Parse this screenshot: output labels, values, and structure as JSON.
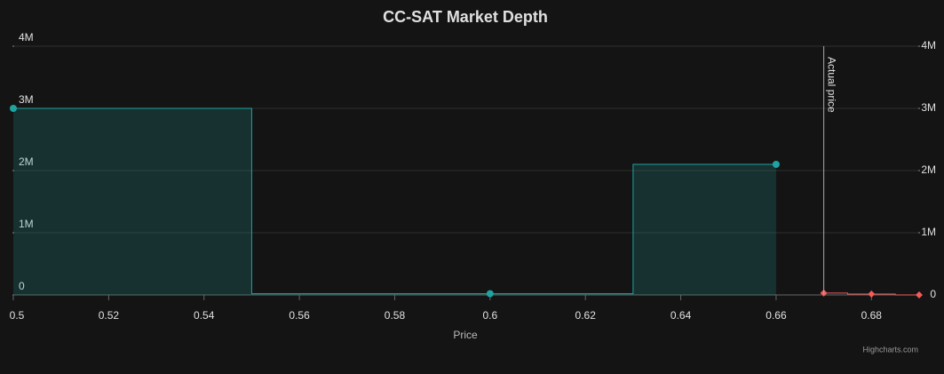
{
  "chart_data": {
    "type": "depth",
    "title": "CC-SAT Market Depth",
    "x_label": "Price",
    "xlim": [
      0.5,
      0.69
    ],
    "xticks": [
      0.5,
      0.52,
      0.54,
      0.56,
      0.58,
      0.6,
      0.62,
      0.64,
      0.66,
      0.68
    ],
    "ylim": [
      0,
      4000000
    ],
    "yticks": [
      0,
      {
        "value": 1000000,
        "label": "1M"
      },
      {
        "value": 2000000,
        "label": "2M"
      },
      {
        "value": 3000000,
        "label": "3M"
      },
      {
        "value": 4000000,
        "label": "4M"
      }
    ],
    "y2lim": [
      0,
      4000000
    ],
    "y2ticks": [
      0,
      {
        "value": 1000000,
        "label": "1M"
      },
      {
        "value": 2000000,
        "label": "2M"
      },
      {
        "value": 3000000,
        "label": "3M"
      },
      {
        "value": 4000000,
        "label": "4M"
      }
    ],
    "grid": true,
    "series": [
      {
        "color": "#1fa3a0",
        "marker": "circle",
        "area": true,
        "x": [
          0.5,
          0.6,
          0.66
        ],
        "values": [
          3000000,
          20000,
          2100000
        ]
      },
      {
        "color": "#f45b5b",
        "marker": "diamond",
        "area": false,
        "x": [
          0.67,
          0.68,
          0.69
        ],
        "values": [
          30000,
          15000,
          0
        ]
      }
    ],
    "plot_lines": [
      {
        "value": 0.67,
        "label": "Actual price"
      }
    ],
    "credits": "Highcharts.com"
  }
}
